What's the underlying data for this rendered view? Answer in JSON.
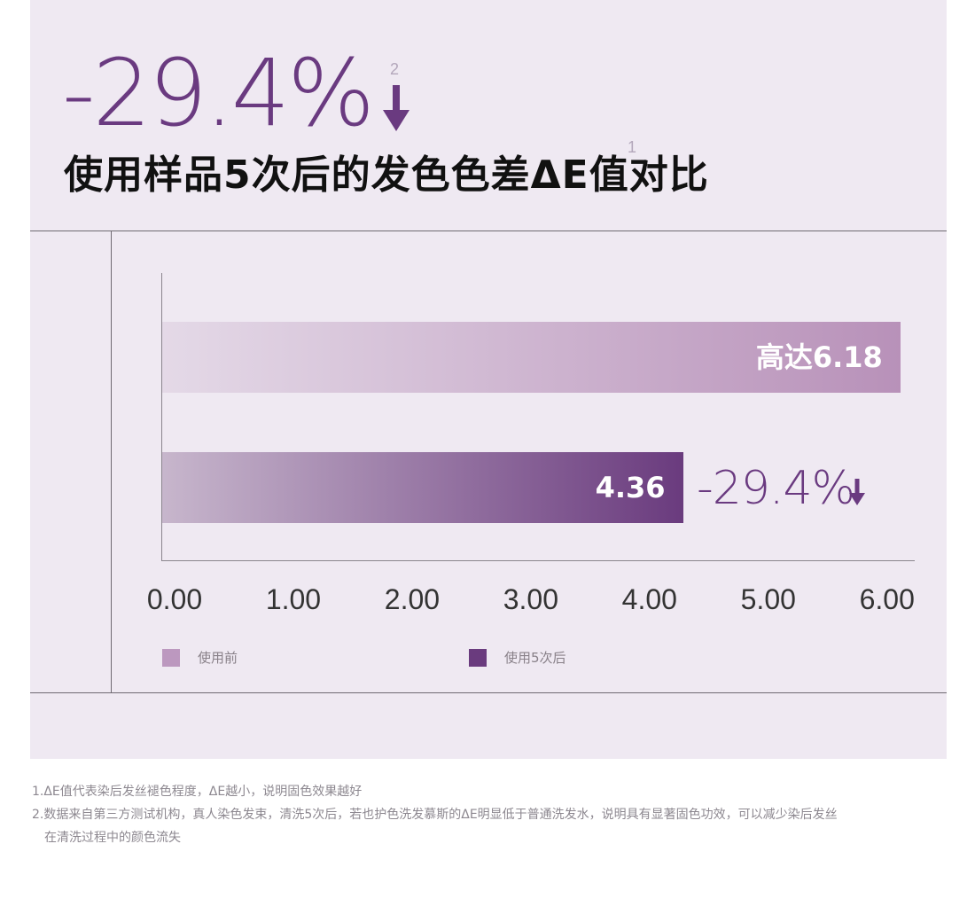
{
  "header": {
    "headline": "-29.4%",
    "headline_sup": "2",
    "subtitle": "使用样品5次后的发色色差ΔE值对比",
    "subtitle_sup": "1"
  },
  "chart_data": {
    "type": "bar",
    "orientation": "horizontal",
    "categories": [
      "使用前",
      "使用5次后"
    ],
    "series": [
      {
        "name": "使用前",
        "value": 6.18,
        "label": "高达6.18",
        "color": "#bc98bf"
      },
      {
        "name": "使用5次后",
        "value": 4.36,
        "label": "4.36",
        "color": "#6a3b7e"
      }
    ],
    "x_ticks": [
      "0.00",
      "1.00",
      "2.00",
      "3.00",
      "4.00",
      "5.00",
      "6.00"
    ],
    "xlim": [
      0,
      6.3
    ],
    "annotation": "-29.4%",
    "grid": false,
    "legend_position": "bottom"
  },
  "footnotes": [
    "1.ΔE值代表染后发丝褪色程度，ΔE越小，说明固色效果越好",
    "2.数据来自第三方测试机构，真人染色发束，清洗5次后，若也护色洗发慕斯的ΔE明显低于普通洗发水，说明具有显著固色功效，可以减少染后发丝",
    "在清洗过程中的颜色流失"
  ],
  "icons": {
    "headline_arrow": "down-arrow-icon",
    "delta_arrow": "down-arrow-icon"
  },
  "colors": {
    "accent": "#6a3a80",
    "panel": "#efe9f2"
  }
}
